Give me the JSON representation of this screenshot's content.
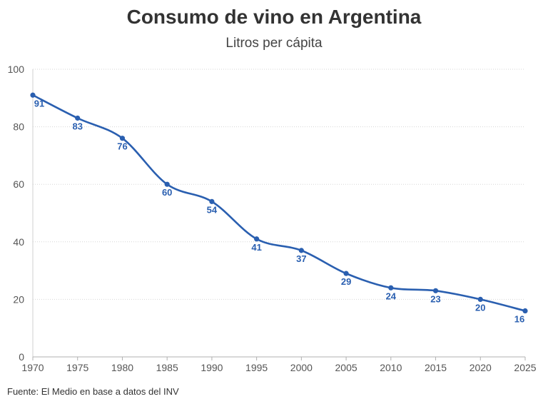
{
  "chart_data": {
    "type": "line",
    "title": "Consumo de vino en Argentina",
    "subtitle": "Litros per cápita",
    "xlabel": "",
    "ylabel": "",
    "x": [
      1970,
      1975,
      1980,
      1985,
      1990,
      1995,
      2000,
      2005,
      2010,
      2015,
      2020,
      2025
    ],
    "series": [
      {
        "name": "",
        "values": [
          91,
          83,
          76,
          60,
          54,
          41,
          37,
          29,
          24,
          23,
          20,
          16
        ],
        "color": "#2a5fb0"
      }
    ],
    "x_ticks": [
      "1970",
      "1975",
      "1980",
      "1985",
      "1990",
      "1995",
      "2000",
      "2005",
      "2010",
      "2015",
      "2020",
      "2025"
    ],
    "y_ticks": [
      "0",
      "20",
      "40",
      "60",
      "80",
      "100"
    ],
    "xlim": [
      1970,
      2025
    ],
    "ylim": [
      0,
      100
    ],
    "grid": "horizontal dotted",
    "legend": "none",
    "data_labels": true
  },
  "source": "Fuente: El Medio en base a datos del INV"
}
